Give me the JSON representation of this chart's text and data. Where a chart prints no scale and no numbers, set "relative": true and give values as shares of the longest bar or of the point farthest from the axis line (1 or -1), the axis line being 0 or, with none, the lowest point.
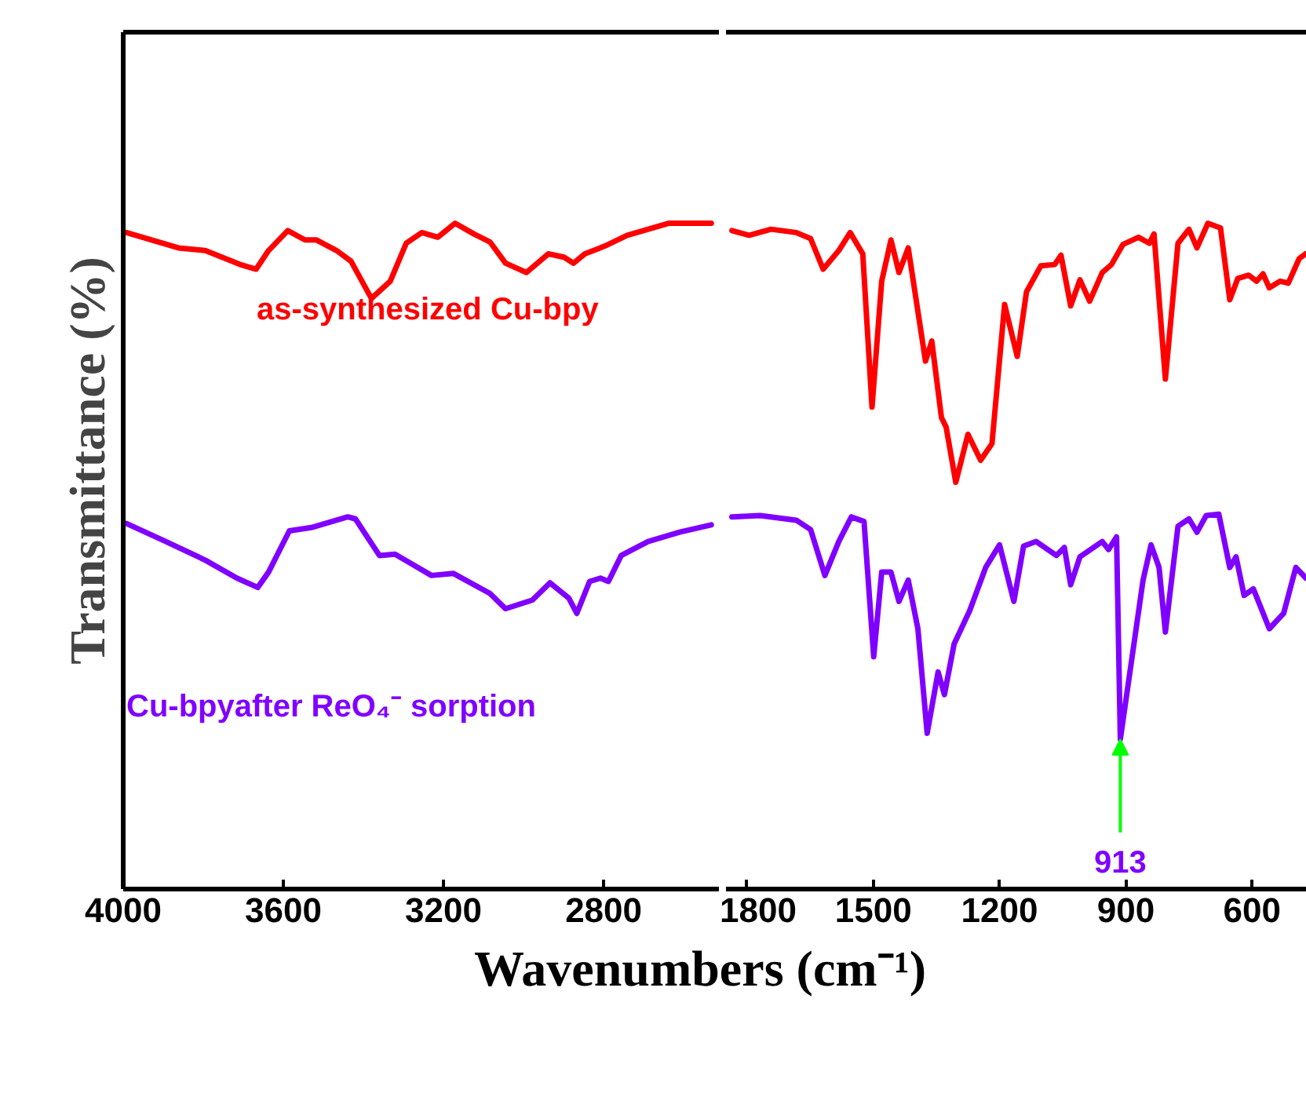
{
  "chart_data": [
    {
      "type": "line",
      "relative": true,
      "ylabel": "Transmittance (%)",
      "xlabel": "Wavenumbers (cm⁻¹)",
      "xlim": [
        4000,
        2510
      ],
      "xticks": [
        4000,
        3600,
        3200,
        2800
      ],
      "grid": false,
      "tick_labels": "x",
      "line_style": "solid",
      "marker": "none",
      "series": [
        {
          "name": "as-synthesized Cu-bpy",
          "color": "#ff0000",
          "x": [
            3992,
            3862,
            3795,
            3708,
            3668,
            3637,
            3589,
            3546,
            3518,
            3467,
            3431,
            3380,
            3333,
            3293,
            3254,
            3214,
            3171,
            3124,
            3084,
            3045,
            2993,
            2938,
            2899,
            2875,
            2847,
            2796,
            2741,
            2638,
            2531
          ],
          "values": [
            0.986,
            0.963,
            0.959,
            0.938,
            0.931,
            0.959,
            0.989,
            0.975,
            0.975,
            0.959,
            0.943,
            0.887,
            0.913,
            0.97,
            0.986,
            0.979,
            1.0,
            0.984,
            0.972,
            0.94,
            0.926,
            0.954,
            0.949,
            0.94,
            0.954,
            0.966,
            0.982,
            1.0,
            1.0
          ]
        },
        {
          "name": "Cu-bpyafter ReO₄⁻ sorption",
          "color": "#8000ff",
          "x": [
            3992,
            3901,
            3795,
            3716,
            3664,
            3637,
            3585,
            3530,
            3439,
            3420,
            3360,
            3321,
            3230,
            3175,
            3084,
            3045,
            2978,
            2934,
            2887,
            2867,
            2835,
            2808,
            2788,
            2756,
            2689,
            2610,
            2531
          ],
          "values": [
            0.549,
            0.524,
            0.494,
            0.467,
            0.453,
            0.476,
            0.538,
            0.543,
            0.559,
            0.556,
            0.501,
            0.503,
            0.471,
            0.474,
            0.444,
            0.421,
            0.434,
            0.46,
            0.437,
            0.414,
            0.462,
            0.467,
            0.462,
            0.501,
            0.522,
            0.536,
            0.547
          ]
        }
      ]
    },
    {
      "type": "line",
      "relative": true,
      "xlim": [
        1850,
        470
      ],
      "xticks": [
        1800,
        1500,
        1200,
        900,
        600
      ],
      "grid": false,
      "tick_labels": "x",
      "line_style": "solid",
      "marker": "none",
      "annotations": [
        {
          "text": "913",
          "x": 913,
          "y": 0.225
        }
      ],
      "series": [
        {
          "color": "#ff0000",
          "x": [
            1836,
            1795,
            1743,
            1683,
            1649,
            1619,
            1582,
            1555,
            1525,
            1503,
            1480,
            1458,
            1439,
            1417,
            1376,
            1361,
            1338,
            1327,
            1304,
            1275,
            1245,
            1218,
            1188,
            1158,
            1136,
            1102,
            1069,
            1054,
            1031,
            1009,
            986,
            956,
            934,
            907,
            870,
            844,
            833,
            806,
            776,
            750,
            731,
            705,
            675,
            653,
            634,
            608,
            589,
            574,
            559,
            533,
            514,
            488,
            473
          ],
          "values": [
            0.989,
            0.982,
            0.991,
            0.986,
            0.977,
            0.931,
            0.959,
            0.986,
            0.954,
            0.724,
            0.913,
            0.975,
            0.926,
            0.963,
            0.793,
            0.823,
            0.708,
            0.694,
            0.611,
            0.683,
            0.644,
            0.669,
            0.878,
            0.8,
            0.897,
            0.936,
            0.938,
            0.952,
            0.876,
            0.915,
            0.883,
            0.926,
            0.938,
            0.968,
            0.979,
            0.97,
            0.984,
            0.766,
            0.97,
            0.991,
            0.963,
            1.0,
            0.993,
            0.885,
            0.917,
            0.922,
            0.913,
            0.924,
            0.903,
            0.913,
            0.91,
            0.947,
            0.954
          ]
        },
        {
          "color": "#8000ff",
          "x": [
            1836,
            1769,
            1683,
            1649,
            1615,
            1582,
            1552,
            1522,
            1499,
            1480,
            1458,
            1439,
            1417,
            1394,
            1372,
            1346,
            1331,
            1308,
            1271,
            1233,
            1200,
            1166,
            1143,
            1113,
            1065,
            1046,
            1031,
            1009,
            956,
            941,
            922,
            913,
            859,
            840,
            821,
            806,
            776,
            750,
            731,
            709,
            679,
            653,
            638,
            619,
            597,
            559,
            525,
            496,
            472
          ],
          "values": [
            0.559,
            0.561,
            0.554,
            0.54,
            0.471,
            0.522,
            0.559,
            0.552,
            0.349,
            0.476,
            0.476,
            0.432,
            0.464,
            0.391,
            0.234,
            0.326,
            0.292,
            0.368,
            0.418,
            0.483,
            0.517,
            0.432,
            0.515,
            0.522,
            0.501,
            0.513,
            0.457,
            0.499,
            0.522,
            0.51,
            0.529,
            0.225,
            0.464,
            0.517,
            0.483,
            0.386,
            0.545,
            0.556,
            0.536,
            0.561,
            0.563,
            0.483,
            0.499,
            0.441,
            0.451,
            0.391,
            0.414,
            0.483,
            0.467
          ]
        }
      ]
    }
  ]
}
